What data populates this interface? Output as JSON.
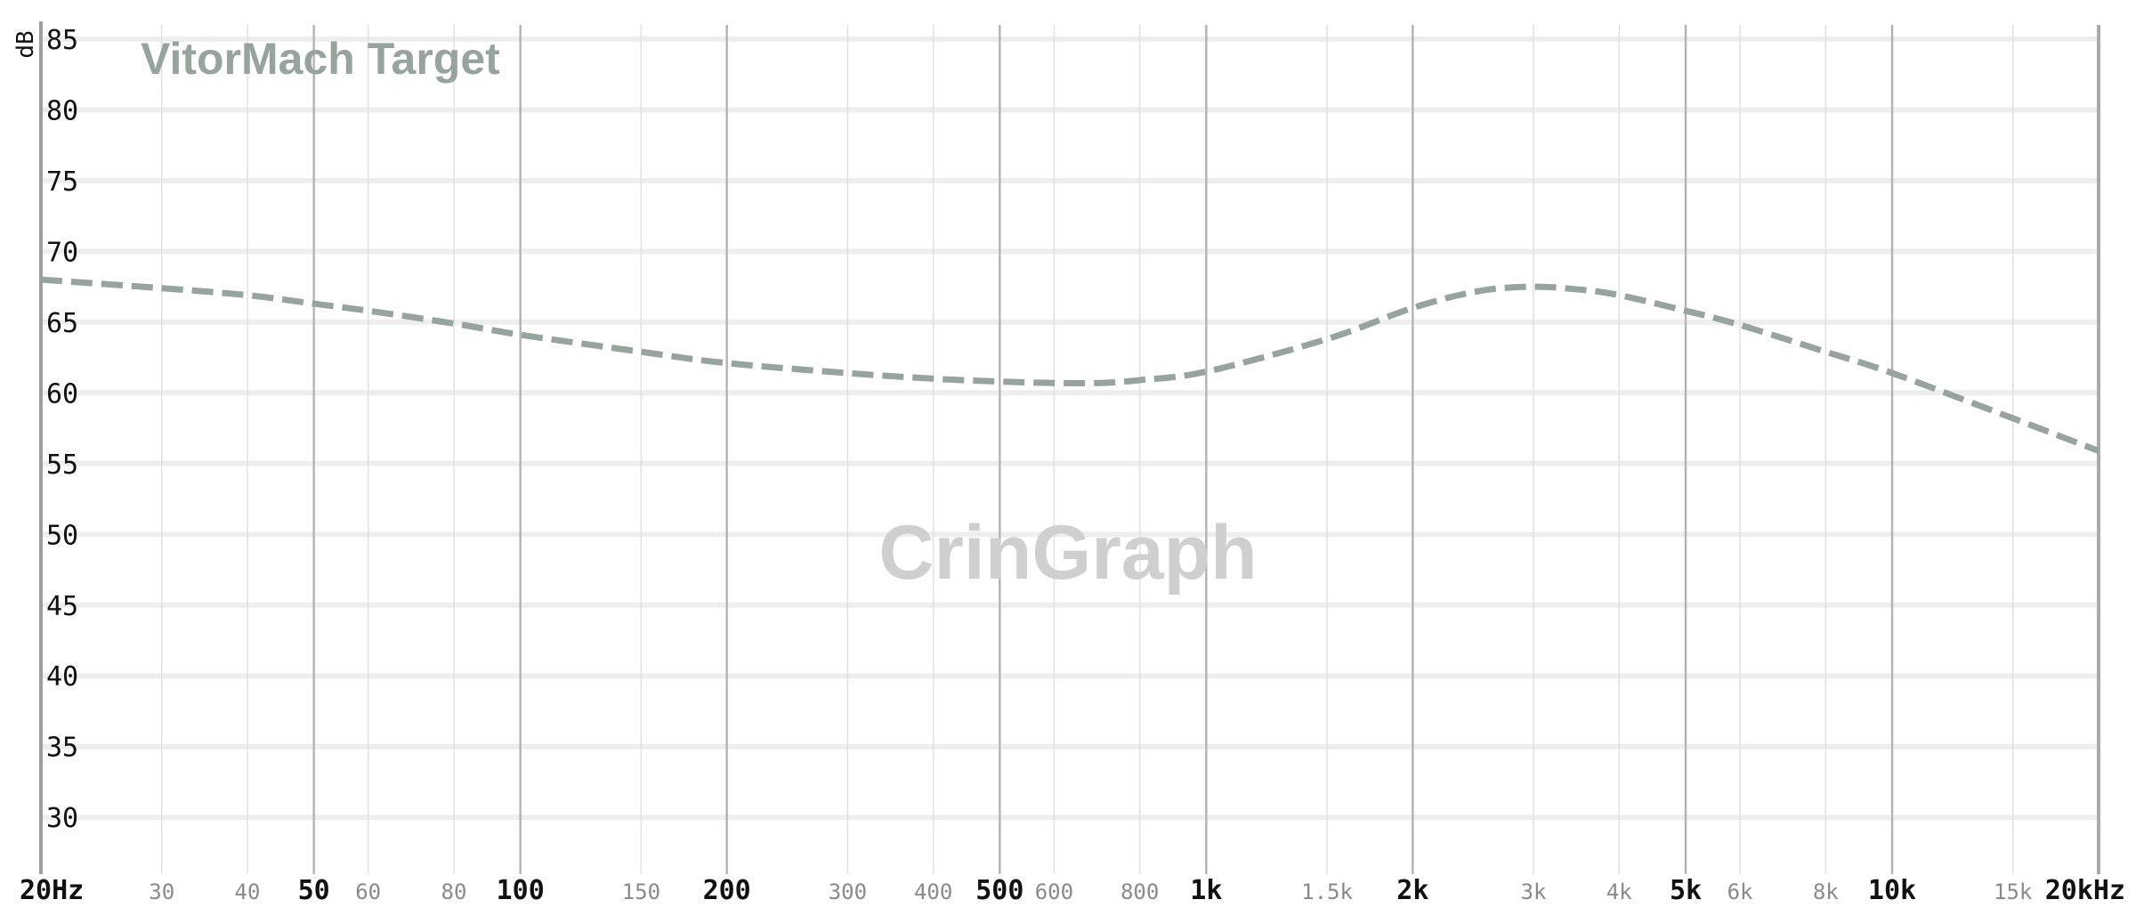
{
  "chart_data": {
    "type": "line",
    "title": "VitorMach Target",
    "watermark": "CrinGraph",
    "ylabel": "dB",
    "xlabel": "",
    "x_scale": "log",
    "xlim": [
      20,
      20000
    ],
    "ylim": [
      28,
      86
    ],
    "grid": true,
    "y_ticks": [
      85,
      80,
      75,
      70,
      65,
      60,
      55,
      50,
      45,
      40,
      35,
      30
    ],
    "x_ticks": [
      {
        "value": 20,
        "label": "20Hz",
        "major": true
      },
      {
        "value": 30,
        "label": "30",
        "major": false
      },
      {
        "value": 40,
        "label": "40",
        "major": false
      },
      {
        "value": 50,
        "label": "50",
        "major": true
      },
      {
        "value": 60,
        "label": "60",
        "major": false
      },
      {
        "value": 80,
        "label": "80",
        "major": false
      },
      {
        "value": 100,
        "label": "100",
        "major": true
      },
      {
        "value": 150,
        "label": "150",
        "major": false
      },
      {
        "value": 200,
        "label": "200",
        "major": true
      },
      {
        "value": 300,
        "label": "300",
        "major": false
      },
      {
        "value": 400,
        "label": "400",
        "major": false
      },
      {
        "value": 500,
        "label": "500",
        "major": true
      },
      {
        "value": 600,
        "label": "600",
        "major": false
      },
      {
        "value": 800,
        "label": "800",
        "major": false
      },
      {
        "value": 1000,
        "label": "1k",
        "major": true
      },
      {
        "value": 1500,
        "label": "1.5k",
        "major": false
      },
      {
        "value": 2000,
        "label": "2k",
        "major": true
      },
      {
        "value": 3000,
        "label": "3k",
        "major": false
      },
      {
        "value": 4000,
        "label": "4k",
        "major": false
      },
      {
        "value": 5000,
        "label": "5k",
        "major": true
      },
      {
        "value": 6000,
        "label": "6k",
        "major": false
      },
      {
        "value": 8000,
        "label": "8k",
        "major": false
      },
      {
        "value": 10000,
        "label": "10k",
        "major": true
      },
      {
        "value": 15000,
        "label": "15k",
        "major": false
      },
      {
        "value": 20000,
        "label": "20kHz",
        "major": true
      }
    ],
    "series": [
      {
        "name": "VitorMach Target",
        "color": "#97a39d",
        "style": "dashed",
        "points": [
          [
            20,
            68.0
          ],
          [
            30,
            67.4
          ],
          [
            40,
            66.9
          ],
          [
            50,
            66.3
          ],
          [
            60,
            65.8
          ],
          [
            80,
            64.9
          ],
          [
            100,
            64.1
          ],
          [
            150,
            62.9
          ],
          [
            200,
            62.1
          ],
          [
            300,
            61.4
          ],
          [
            400,
            61.0
          ],
          [
            500,
            60.8
          ],
          [
            600,
            60.7
          ],
          [
            700,
            60.7
          ],
          [
            800,
            60.9
          ],
          [
            1000,
            61.5
          ],
          [
            1500,
            63.8
          ],
          [
            2000,
            66.0
          ],
          [
            2500,
            67.2
          ],
          [
            3000,
            67.5
          ],
          [
            3500,
            67.3
          ],
          [
            4000,
            66.9
          ],
          [
            5000,
            65.8
          ],
          [
            6000,
            64.8
          ],
          [
            8000,
            62.9
          ],
          [
            10000,
            61.4
          ],
          [
            15000,
            58.2
          ],
          [
            20000,
            55.9
          ]
        ]
      }
    ]
  }
}
